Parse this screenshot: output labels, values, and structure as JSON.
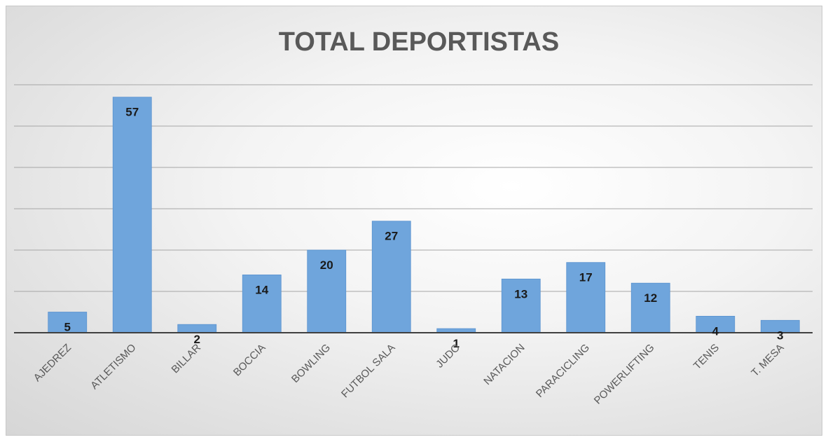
{
  "chart_data": {
    "type": "bar",
    "title": "TOTAL DEPORTISTAS",
    "xlabel": "",
    "ylabel": "",
    "categories": [
      "AJEDREZ",
      "ATLETISMO",
      "BILLAR",
      "BOCCIA",
      "BOWLING",
      "FUTBOL SALA",
      "JUDO",
      "NATACION",
      "PARACICLING",
      "POWERLIFTING",
      "TENIS",
      "T. MESA"
    ],
    "values": [
      5,
      57,
      2,
      14,
      20,
      27,
      1,
      13,
      17,
      12,
      4,
      3
    ],
    "ylim": [
      0,
      60
    ],
    "y_gridline_step": 10,
    "y_tick_labels_shown": false,
    "grid": true,
    "legend": "none",
    "data_labels": "inside-end",
    "colors": {
      "bar": "#6fa5dc",
      "bar_edge": "#5b93cf",
      "grid": "#a6a6a6",
      "axis": "#404040",
      "title": "#595959"
    }
  }
}
